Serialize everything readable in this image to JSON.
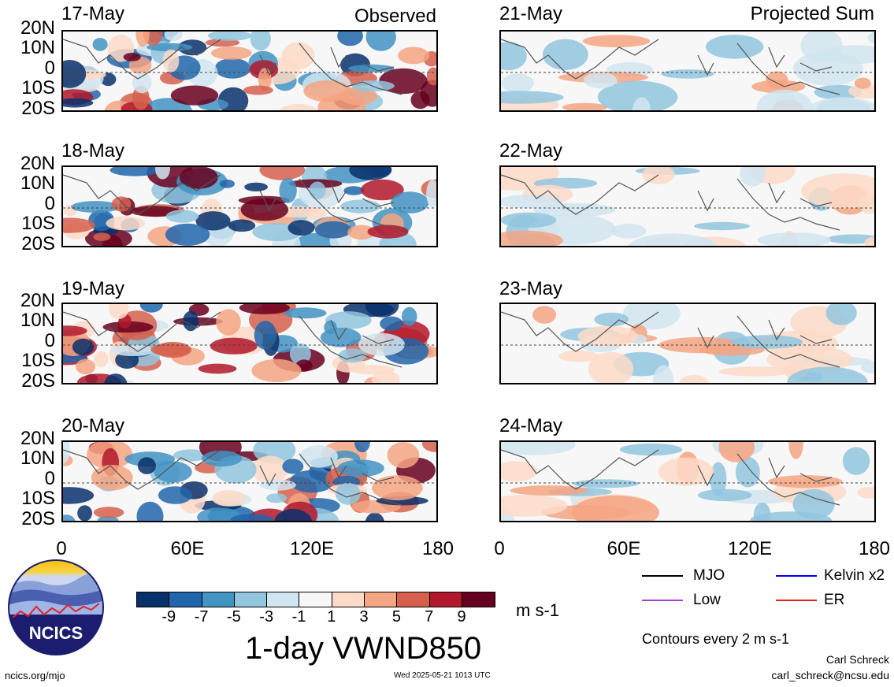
{
  "panels_left": [
    {
      "date": "17-May",
      "label": "Observed"
    },
    {
      "date": "18-May",
      "label": ""
    },
    {
      "date": "19-May",
      "label": ""
    },
    {
      "date": "20-May",
      "label": ""
    }
  ],
  "panels_right": [
    {
      "date": "21-May",
      "label": "Projected Sum"
    },
    {
      "date": "22-May",
      "label": ""
    },
    {
      "date": "23-May",
      "label": ""
    },
    {
      "date": "24-May",
      "label": ""
    }
  ],
  "lat_labels": [
    "20N",
    "10N",
    "0",
    "10S",
    "20S"
  ],
  "lon_labels": [
    "0",
    "60E",
    "120E",
    "180"
  ],
  "legend": {
    "mjo": "MJO",
    "kelvin": "Kelvin x2",
    "low": "Low",
    "er": "ER",
    "colors": {
      "mjo": "#000000",
      "kelvin": "#0000ff",
      "low": "#a040e0",
      "er": "#e02020"
    }
  },
  "colorbar": {
    "colors": [
      "#08306b",
      "#2166ac",
      "#4393c3",
      "#92c5de",
      "#d1e5f0",
      "#f7f7f7",
      "#fddbc7",
      "#f4a582",
      "#d6604d",
      "#b2182b",
      "#67001f"
    ],
    "ticks": [
      "-9",
      "-7",
      "-5",
      "-3",
      "-1",
      "1",
      "3",
      "5",
      "7",
      "9"
    ],
    "units": "m s-1"
  },
  "title": "1-day VWND850",
  "contours_note": "Contours every 2 m s-1",
  "org": "NCICS",
  "url": "ncics.org/mjo",
  "timestamp": "Wed 2025-05-21 1013 UTC",
  "author": "Carl Schreck",
  "email": "carl_schreck@ncsu.edu"
}
